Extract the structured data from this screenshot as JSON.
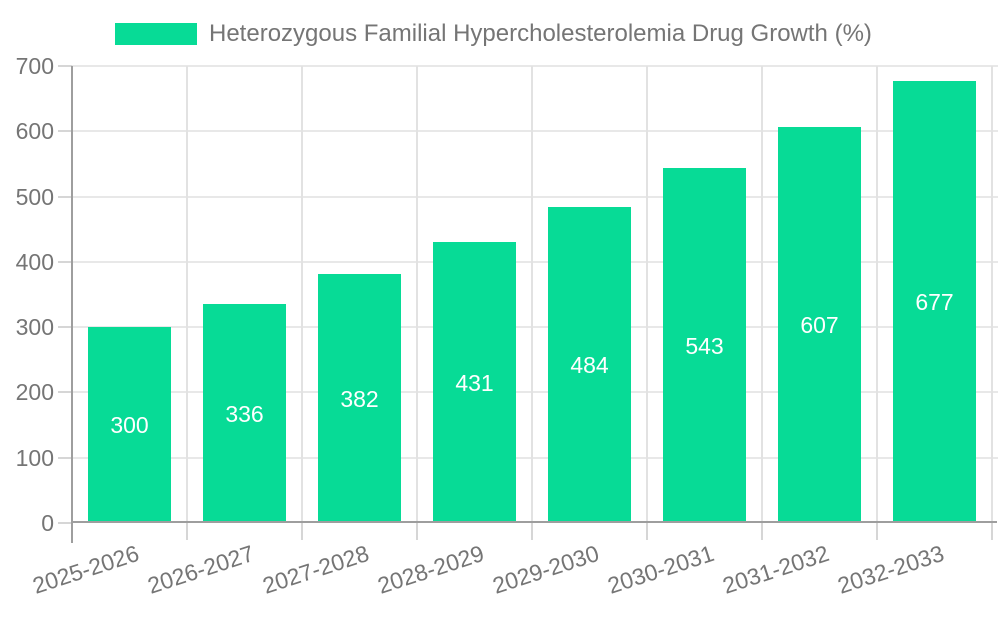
{
  "legend": {
    "label": "Heterozygous Familial Hypercholesterolemia Drug Growth (%)"
  },
  "chart_data": {
    "type": "bar",
    "title": "Heterozygous Familial Hypercholesterolemia Drug Growth (%)",
    "categories": [
      "2025-2026",
      "2026-2027",
      "2027-2028",
      "2028-2029",
      "2029-2030",
      "2030-2031",
      "2031-2032",
      "2032-2033"
    ],
    "values": [
      300,
      336,
      382,
      431,
      484,
      543,
      607,
      677
    ],
    "xlabel": "",
    "ylabel": "",
    "ylim": [
      0,
      700
    ],
    "yticks": [
      0,
      100,
      200,
      300,
      400,
      500,
      600,
      700
    ],
    "grid": "on",
    "legend_position": "top",
    "value_labels": "inside-center"
  },
  "colors": {
    "bar": "#07db96",
    "value_label": "#ffffff",
    "axis_line": "#9e9e9e",
    "hgridline": "#e8e8e8",
    "vgridline": "#e2e2e2",
    "tick": "#d6d6d6",
    "text": "#757575",
    "background": "#ffffff"
  }
}
